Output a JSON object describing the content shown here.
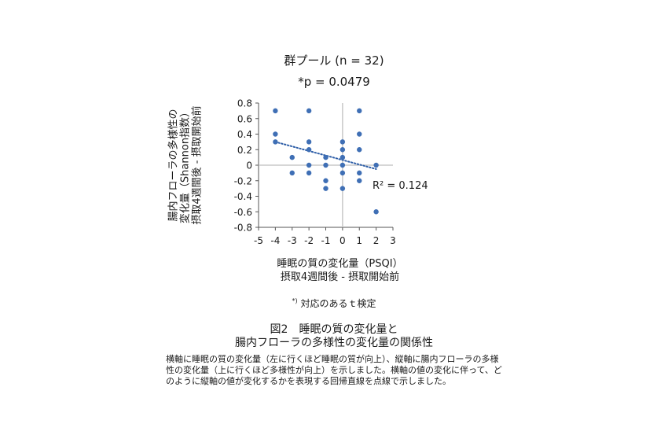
{
  "title": "群プール (n = 32)",
  "p_value": "*p = 0.0479",
  "r_squared_label": "R² = 0.124",
  "ylabel_lines": [
    "腸内フローラの多様性の",
    "変化量（Shannon指数）",
    "摂取4週間後 - 摂取開始前"
  ],
  "xlabel_lines": [
    "睡眠の質の変化量（PSQI）",
    "摂取4週間後 - 摂取開始前"
  ],
  "footnote_mark": "*)",
  "footnote_text": " 対応のあるｔ検定",
  "figure_title_lines": [
    "図2　睡眠の質の変化量と",
    "腸内フローラの多様性の変化量の関係性"
  ],
  "caption": "横軸に睡眠の質の変化量（左に行くほど睡眠の質が向上）、縦軸に腸内フローラの多様性の変化量（上に行くほど多様性が向上）を示しました。横軸の値の変化に伴って、どのように縦軸の値が変化するかを表現する回帰直線を点線で示しました。",
  "colors": {
    "points": "#3f6fb5",
    "trend": "#2f5fa8",
    "zero_lines": "#c8c8c8",
    "axes": "#555555"
  },
  "chart_data": {
    "type": "scatter",
    "xlim": [
      -5,
      3
    ],
    "ylim": [
      -0.8,
      0.8
    ],
    "xticks": [
      "-5",
      "-4",
      "-3",
      "-2",
      "-1",
      "0",
      "1",
      "2",
      "3"
    ],
    "yticks": [
      "0.8",
      "0.6",
      "0.4",
      "0.2",
      "0",
      "-0.2",
      "-0.4",
      "-0.6",
      "-0.8"
    ],
    "points": [
      [
        -4,
        0.7
      ],
      [
        -4,
        0.4
      ],
      [
        -4,
        0.3
      ],
      [
        -3,
        0.1
      ],
      [
        -3,
        -0.1
      ],
      [
        -2,
        0.7
      ],
      [
        -2,
        0.3
      ],
      [
        -2,
        0.2
      ],
      [
        -2,
        0.0
      ],
      [
        -2,
        -0.1
      ],
      [
        -1,
        0.1
      ],
      [
        -1,
        0.0
      ],
      [
        -1,
        -0.2
      ],
      [
        -1,
        -0.3
      ],
      [
        0,
        0.3
      ],
      [
        0,
        0.2
      ],
      [
        0,
        0.1
      ],
      [
        0,
        0.0
      ],
      [
        0,
        -0.1
      ],
      [
        0,
        -0.3
      ],
      [
        1,
        0.7
      ],
      [
        1,
        0.4
      ],
      [
        1,
        0.2
      ],
      [
        1,
        -0.1
      ],
      [
        1,
        -0.2
      ],
      [
        2,
        0.0
      ],
      [
        2,
        -0.6
      ]
    ],
    "trendline": {
      "style": "dotted",
      "x": [
        -4,
        2
      ],
      "y": [
        0.3,
        -0.05
      ]
    },
    "zero_reference_lines": true,
    "grid": false
  }
}
